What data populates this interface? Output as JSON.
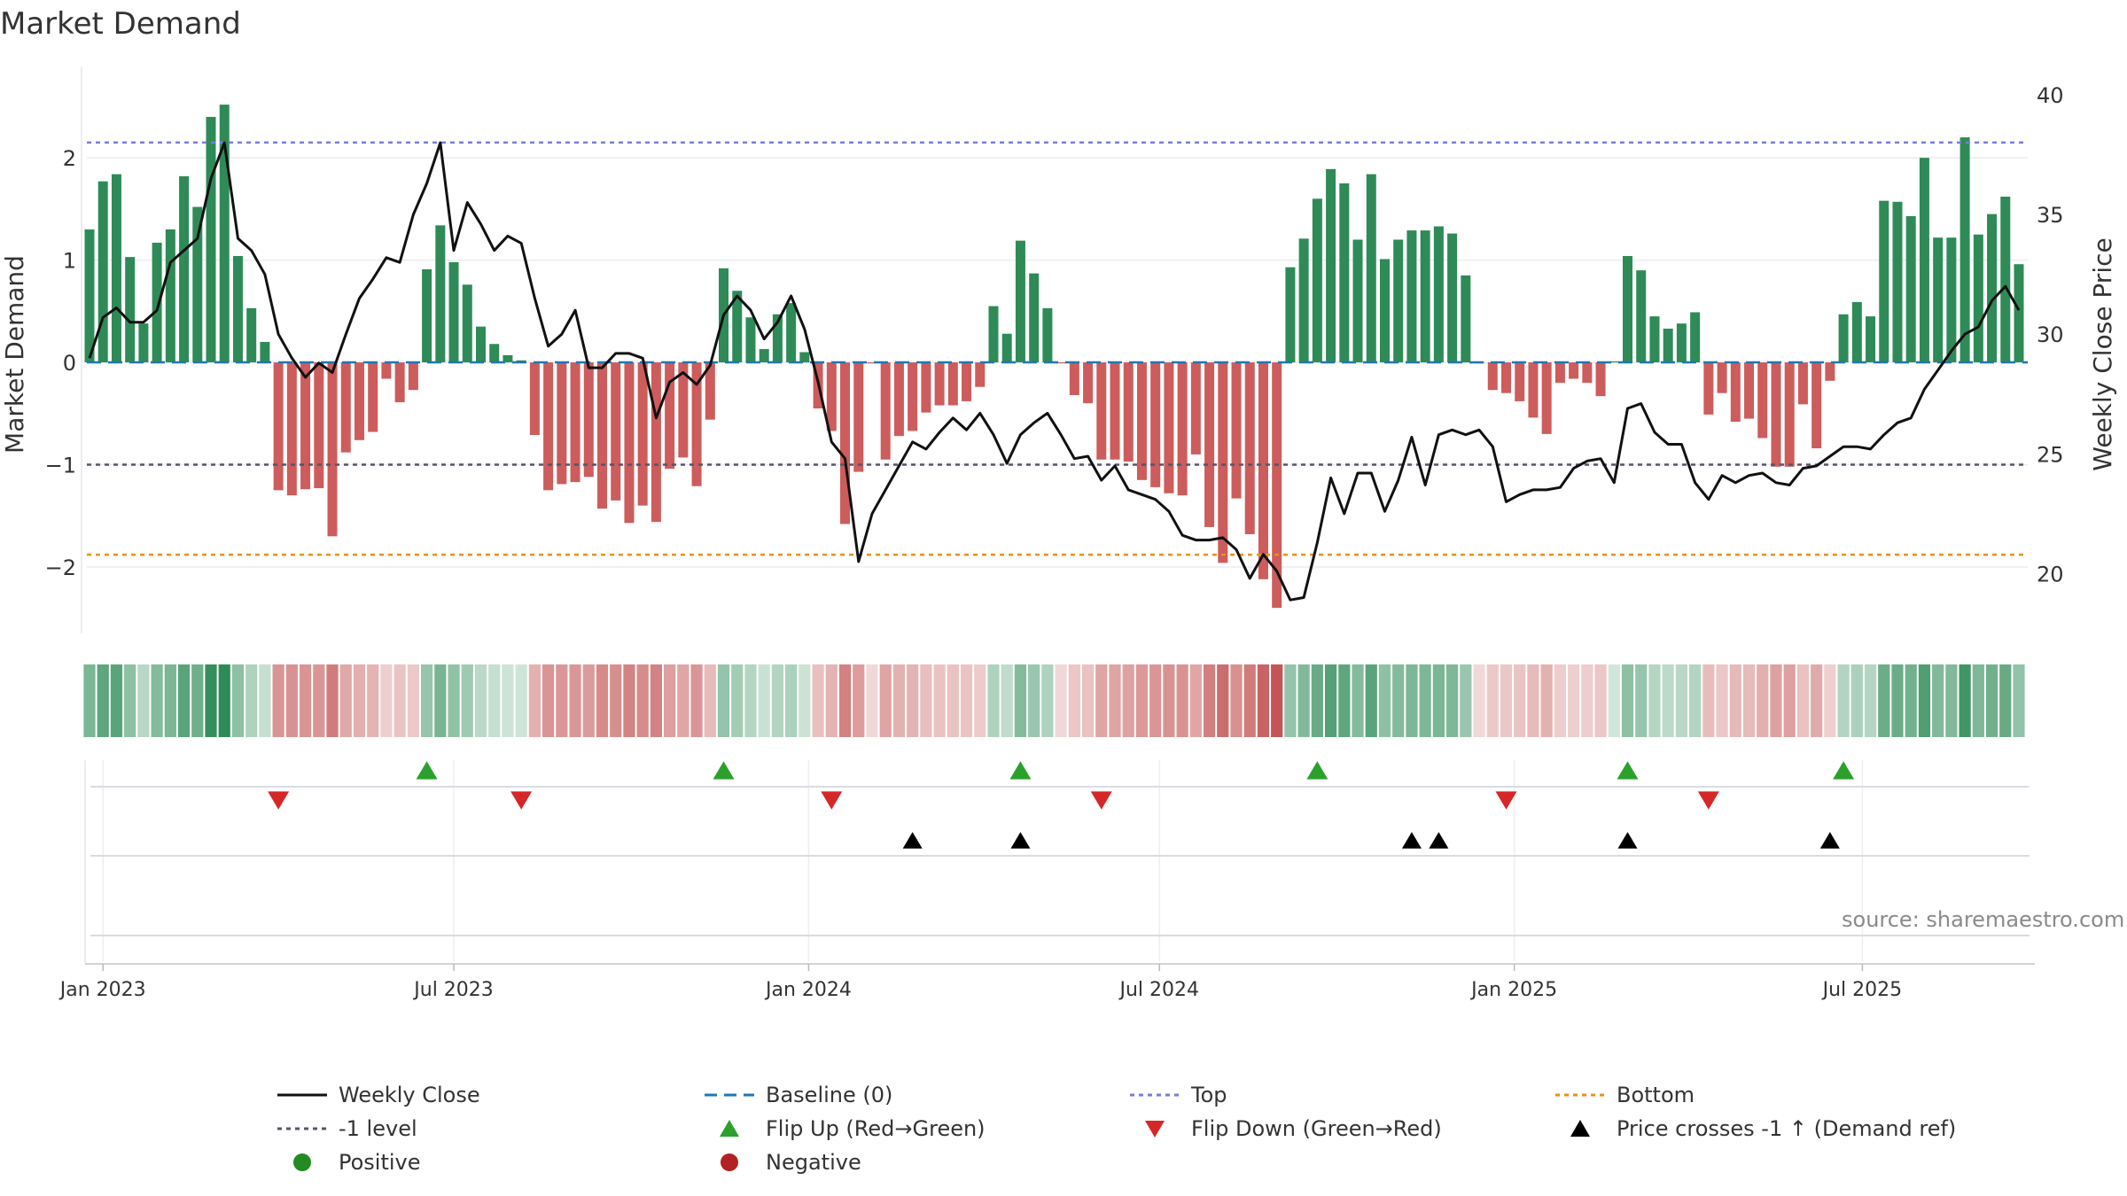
{
  "chart_data": {
    "type": "bar",
    "title": "Market Demand",
    "ylabel_left": "Market Demand",
    "ylabel_right": "Weekly Close Price",
    "ylim_left": [
      -2.65,
      2.85
    ],
    "ylim_right": [
      17.5,
      41
    ],
    "yticks_left": [
      2,
      1,
      0,
      -1,
      -2
    ],
    "ytick_labels_left": [
      "2",
      "1",
      "0",
      "−1",
      "−2"
    ],
    "yticks_right": [
      40,
      35,
      30,
      25,
      20
    ],
    "ytick_labels_right": [
      "40",
      "35",
      "30",
      "25",
      "20"
    ],
    "x_start": "2022-12-26",
    "week_step": 1,
    "x_ticks": [
      {
        "label": "Jan 2023",
        "week": 1
      },
      {
        "label": "Jul 2023",
        "week": 27
      },
      {
        "label": "Jan 2024",
        "week": 53.3
      },
      {
        "label": "Jul 2024",
        "week": 79.3
      },
      {
        "label": "Jan 2025",
        "week": 105.6
      },
      {
        "label": "Jul 2025",
        "week": 131.4
      }
    ],
    "reference_lines": [
      {
        "name": "Top",
        "value": 2.15,
        "color": "#7b7bd8"
      },
      {
        "name": "-1 level",
        "value": -1,
        "color": "#555566"
      },
      {
        "name": "Bottom",
        "value": -1.88,
        "color": "#e8901a"
      }
    ],
    "demand_values": [
      1.3,
      1.77,
      1.84,
      1.03,
      0.38,
      1.17,
      1.3,
      1.82,
      1.52,
      2.4,
      2.52,
      1.04,
      0.53,
      0.2,
      -1.25,
      -1.3,
      -1.24,
      -1.23,
      -1.7,
      -0.88,
      -0.76,
      -0.68,
      -0.16,
      -0.39,
      -0.27,
      0.91,
      1.34,
      0.98,
      0.76,
      0.35,
      0.18,
      0.07,
      0.02,
      -0.71,
      -1.25,
      -1.19,
      -1.17,
      -1.12,
      -1.43,
      -1.35,
      -1.57,
      -1.4,
      -1.56,
      -1.04,
      -0.93,
      -1.21,
      -0.56,
      0.92,
      0.7,
      0.44,
      0.13,
      0.47,
      0.58,
      0.1,
      -0.45,
      -0.67,
      -1.58,
      -1.07,
      -0.01,
      -0.95,
      -0.72,
      -0.67,
      -0.49,
      -0.42,
      -0.42,
      -0.38,
      -0.24,
      0.55,
      0.28,
      1.19,
      0.87,
      0.53,
      -0.01,
      -0.32,
      -0.4,
      -0.95,
      -0.95,
      -0.97,
      -1.15,
      -1.22,
      -1.28,
      -1.3,
      -0.9,
      -1.61,
      -1.96,
      -1.33,
      -1.68,
      -2.12,
      -2.4,
      0.93,
      1.21,
      1.6,
      1.89,
      1.75,
      1.2,
      1.84,
      1.01,
      1.2,
      1.29,
      1.29,
      1.33,
      1.26,
      0.85,
      -0.01,
      -0.27,
      -0.3,
      -0.38,
      -0.54,
      -0.7,
      -0.2,
      -0.16,
      -0.2,
      -0.33,
      0.01,
      1.04,
      0.9,
      0.45,
      0.33,
      0.38,
      0.49,
      -0.51,
      -0.3,
      -0.58,
      -0.55,
      -0.74,
      -1.02,
      -1.02,
      -0.41,
      -0.84,
      -0.18,
      0.47,
      0.59,
      0.45,
      1.58,
      1.57,
      1.43,
      2,
      1.22,
      1.22,
      2.2,
      1.25,
      1.45,
      1.62,
      0.96
    ],
    "close_values": [
      29.0,
      30.7,
      31.1,
      30.5,
      30.5,
      31.0,
      33.0,
      33.5,
      34.0,
      36.5,
      38.0,
      34.0,
      33.5,
      32.5,
      30.0,
      29.0,
      28.2,
      28.8,
      28.4,
      30.0,
      31.5,
      32.3,
      33.2,
      33.0,
      35.0,
      36.3,
      38.0,
      33.5,
      35.5,
      34.6,
      33.5,
      34.1,
      33.8,
      31.5,
      29.5,
      30.0,
      31.0,
      28.6,
      28.6,
      29.2,
      29.2,
      29.0,
      26.5,
      28.0,
      28.4,
      27.9,
      28.7,
      30.8,
      31.6,
      31.0,
      29.8,
      30.5,
      31.6,
      30.2,
      28.0,
      25.5,
      24.8,
      20.5,
      22.5,
      23.5,
      24.5,
      25.5,
      25.2,
      25.9,
      26.5,
      26.0,
      26.7,
      25.8,
      24.6,
      25.8,
      26.3,
      26.7,
      25.8,
      24.8,
      24.9,
      23.9,
      24.5,
      23.5,
      23.3,
      23.1,
      22.6,
      21.6,
      21.4,
      21.4,
      21.5,
      21.0,
      19.8,
      20.8,
      20.1,
      18.9,
      19.0,
      21.3,
      24.0,
      22.5,
      24.2,
      24.2,
      22.6,
      23.9,
      25.7,
      23.7,
      25.8,
      26.0,
      25.8,
      26.0,
      25.3,
      23.0,
      23.3,
      23.5,
      23.5,
      23.6,
      24.4,
      24.7,
      24.8,
      23.8,
      26.9,
      27.1,
      25.9,
      25.4,
      25.4,
      23.8,
      23.1,
      24.1,
      23.8,
      24.1,
      24.2,
      23.8,
      23.7,
      24.4,
      24.5,
      24.9,
      25.3,
      25.3,
      25.2,
      25.8,
      26.3,
      26.5,
      27.7,
      28.5,
      29.3,
      30.0,
      30.3,
      31.4,
      32.0,
      31.0
    ],
    "flip_up_weeks": [
      25,
      47,
      69,
      91,
      114,
      130
    ],
    "flip_down_weeks": [
      14,
      32,
      55,
      75,
      105,
      120
    ],
    "price_cross_weeks": [
      61,
      69,
      98,
      100,
      114,
      129
    ],
    "series": [
      {
        "name": "Positive",
        "color": "#2e8b57"
      },
      {
        "name": "Negative",
        "color": "#cd5c5c"
      }
    ]
  },
  "legend": [
    {
      "label": "Weekly Close",
      "kind": "line",
      "color": "#111111"
    },
    {
      "label": "Baseline (0)",
      "kind": "dashed",
      "color": "#1f77b4"
    },
    {
      "label": "Top",
      "kind": "dotted",
      "color": "#7b7bd8"
    },
    {
      "label": "Bottom",
      "kind": "dotted",
      "color": "#e8901a"
    },
    {
      "label": "-1 level",
      "kind": "dotted",
      "color": "#555566"
    },
    {
      "label": "Flip Up (Red→Green)",
      "kind": "tri-up",
      "color": "#2ca02c"
    },
    {
      "label": "Flip Down (Green→Red)",
      "kind": "tri-down",
      "color": "#d62728"
    },
    {
      "label": "Price crosses -1 ↑ (Demand ref)",
      "kind": "tri-up",
      "color": "#000000"
    },
    {
      "label": "Positive",
      "kind": "dot",
      "color": "#228b22"
    },
    {
      "label": "Negative",
      "kind": "dot",
      "color": "#b22222"
    }
  ],
  "source_text": "source: sharemaestro.com"
}
